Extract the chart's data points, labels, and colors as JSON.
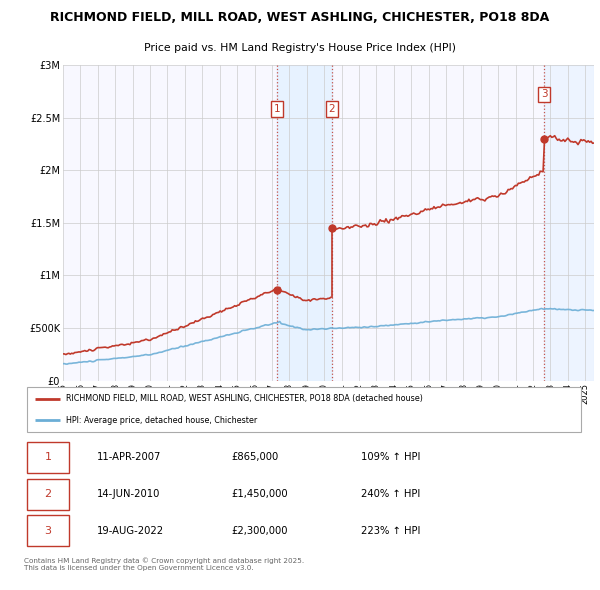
{
  "title_line1": "RICHMOND FIELD, MILL ROAD, WEST ASHLING, CHICHESTER, PO18 8DA",
  "title_line2": "Price paid vs. HM Land Registry's House Price Index (HPI)",
  "ylim": [
    0,
    3000000
  ],
  "yticks": [
    0,
    500000,
    1000000,
    1500000,
    2000000,
    2500000,
    3000000
  ],
  "ytick_labels": [
    "£0",
    "£500K",
    "£1M",
    "£1.5M",
    "£2M",
    "£2.5M",
    "£3M"
  ],
  "xlim_start": 1995.0,
  "xlim_end": 2025.5,
  "xticks": [
    1995,
    1996,
    1997,
    1998,
    1999,
    2000,
    2001,
    2002,
    2003,
    2004,
    2005,
    2006,
    2007,
    2008,
    2009,
    2010,
    2011,
    2012,
    2013,
    2014,
    2015,
    2016,
    2017,
    2018,
    2019,
    2020,
    2021,
    2022,
    2023,
    2024,
    2025
  ],
  "sale_dates": [
    2007.277,
    2010.452,
    2022.635
  ],
  "sale_prices": [
    865000,
    1450000,
    2300000
  ],
  "sale_labels": [
    "1",
    "2",
    "3"
  ],
  "hpi_color": "#6baed6",
  "property_color": "#c0392b",
  "vline_color": "#c0392b",
  "vregion_color": "#ddeeff",
  "legend_property_label": "RICHMOND FIELD, MILL ROAD, WEST ASHLING, CHICHESTER, PO18 8DA (detached house)",
  "legend_hpi_label": "HPI: Average price, detached house, Chichester",
  "table_rows": [
    [
      "1",
      "11-APR-2007",
      "£865,000",
      "109% ↑ HPI"
    ],
    [
      "2",
      "14-JUN-2010",
      "£1,450,000",
      "240% ↑ HPI"
    ],
    [
      "3",
      "19-AUG-2022",
      "£2,300,000",
      "223% ↑ HPI"
    ]
  ],
  "footnote": "Contains HM Land Registry data © Crown copyright and database right 2025.\nThis data is licensed under the Open Government Licence v3.0.",
  "bg_color": "#ffffff",
  "plot_bg_color": "#f8f8ff",
  "grid_color": "#cccccc",
  "label_box_color": "#c0392b"
}
